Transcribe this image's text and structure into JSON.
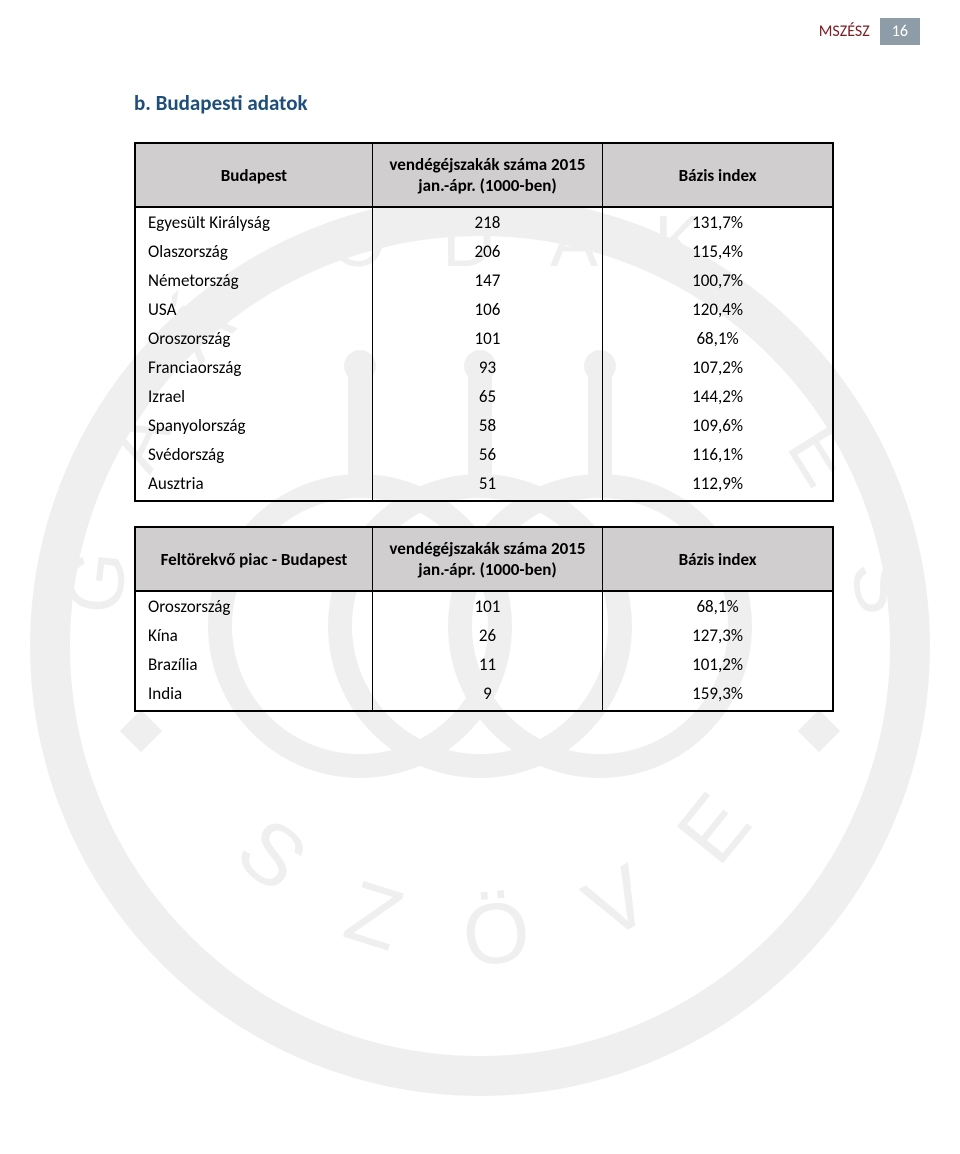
{
  "header": {
    "label": "MSZÉSZ",
    "page": "16",
    "label_color": "#7a1c22",
    "page_bg": "#8d9ca6",
    "page_fg": "#ffffff"
  },
  "section_title": "b.   Budapesti adatok",
  "section_title_color": "#1f4e79",
  "table1": {
    "header_bg": "#d0cece",
    "columns": [
      "Budapest",
      "vendégéjszakák száma 2015 jan.-ápr. (1000-ben)",
      "Bázis index"
    ],
    "rows": [
      [
        "Egyesült Királyság",
        "218",
        "131,7%"
      ],
      [
        "Olaszország",
        "206",
        "115,4%"
      ],
      [
        "Németország",
        "147",
        "100,7%"
      ],
      [
        "USA",
        "106",
        "120,4%"
      ],
      [
        "Oroszország",
        "101",
        "68,1%"
      ],
      [
        "Franciaország",
        "93",
        "107,2%"
      ],
      [
        "Izrael",
        "65",
        "144,2%"
      ],
      [
        "Spanyolország",
        "58",
        "109,6%"
      ],
      [
        "Svédország",
        "56",
        "116,1%"
      ],
      [
        "Ausztria",
        "51",
        "112,9%"
      ]
    ]
  },
  "table2": {
    "header_bg": "#d0cece",
    "columns": [
      "Feltörekvő piac - Budapest",
      "vendégéjszakák száma 2015 jan.-ápr. (1000-ben)",
      "Bázis index"
    ],
    "rows": [
      [
        "Oroszország",
        "101",
        "68,1%"
      ],
      [
        "Kína",
        "26",
        "127,3%"
      ],
      [
        "Brazília",
        "11",
        "101,2%"
      ],
      [
        "India",
        "9",
        "159,3%"
      ]
    ]
  },
  "watermark": {
    "ring_color": "#6b6b6b",
    "letter_color": "#6b6b6b"
  }
}
